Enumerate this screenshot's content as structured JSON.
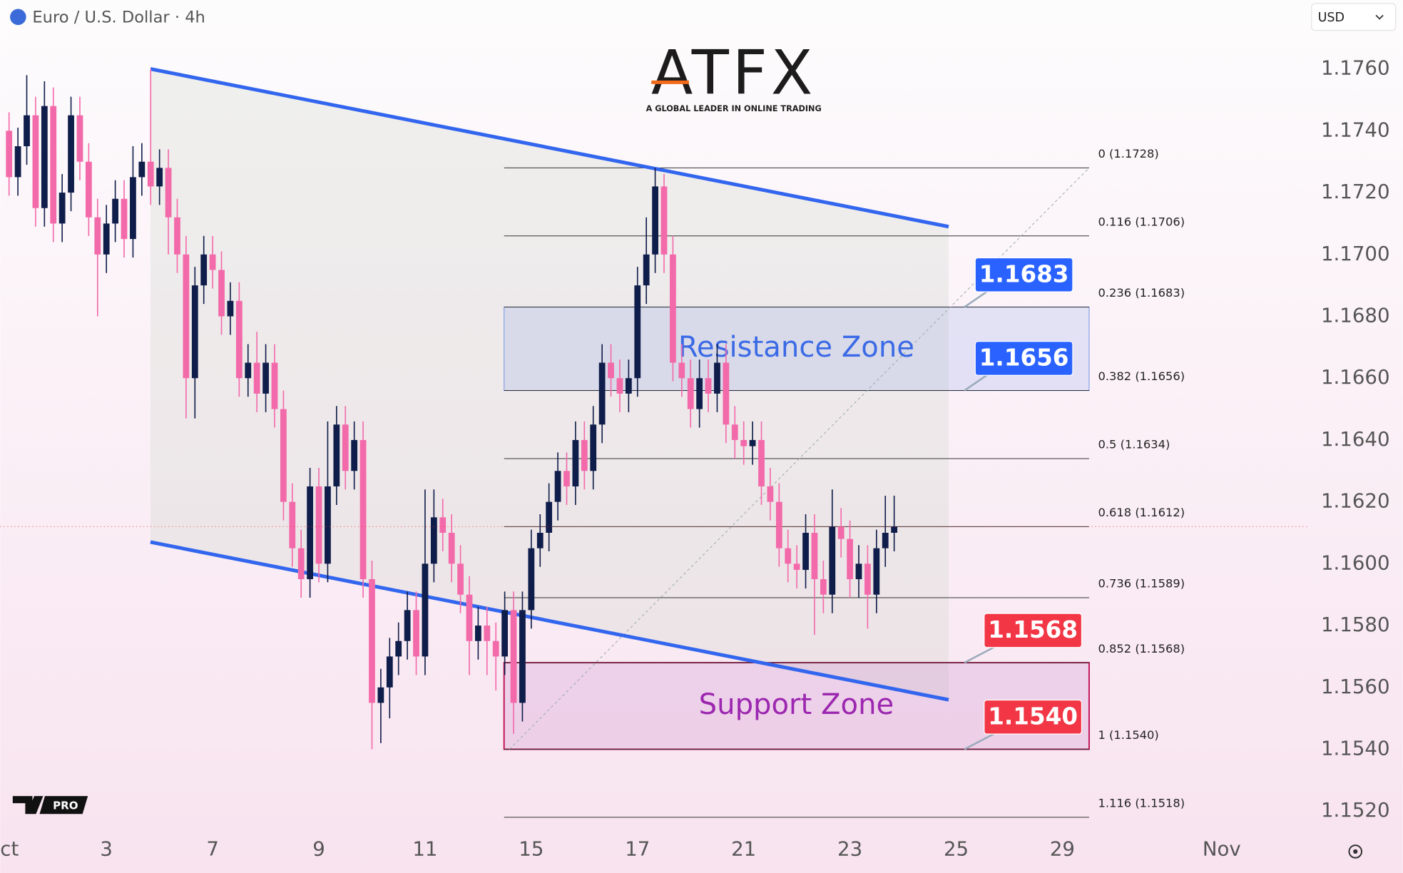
{
  "header": {
    "symbol": "Euro / U.S. Dollar · 4h",
    "currency": "USD"
  },
  "logo": {
    "name": "ATFX",
    "tagline": "A GLOBAL LEADER IN ONLINE TRADING"
  },
  "badge": "PRO",
  "chart_data": {
    "type": "candlestick",
    "x": [
      4,
      8,
      12,
      16,
      20,
      24,
      28,
      32,
      36,
      40,
      44,
      48,
      52,
      56,
      60,
      64,
      68,
      72,
      76,
      80,
      84,
      88,
      92,
      96,
      100,
      104,
      108,
      112,
      116,
      120,
      124,
      128,
      132,
      136,
      140,
      144,
      148,
      152,
      156,
      160,
      164,
      168,
      172,
      176,
      180,
      184,
      188,
      192,
      196,
      200,
      204,
      208,
      212,
      216,
      220,
      224,
      228,
      232,
      236,
      240,
      244,
      248,
      252,
      256,
      260,
      264,
      268,
      272,
      276,
      280,
      284,
      288,
      292,
      296,
      300,
      304,
      308,
      312,
      316,
      320,
      324,
      328,
      332,
      336,
      340,
      344,
      348,
      352,
      356,
      360,
      364,
      368,
      372,
      376,
      380,
      384,
      388,
      392,
      396,
      400,
      404
    ],
    "open": [
      1.174,
      1.1725,
      1.1735,
      1.1745,
      1.1715,
      1.1748,
      1.171,
      1.172,
      1.1745,
      1.173,
      1.1712,
      1.17,
      1.171,
      1.1718,
      1.1705,
      1.1725,
      1.173,
      1.1722,
      1.1728,
      1.1712,
      1.17,
      1.166,
      1.169,
      1.17,
      1.1695,
      1.168,
      1.1685,
      1.166,
      1.1665,
      1.1655,
      1.1665,
      1.165,
      1.162,
      1.1605,
      1.1595,
      1.1625,
      1.16,
      1.1625,
      1.1645,
      1.163,
      1.164,
      1.1595,
      1.1555,
      1.156,
      1.157,
      1.1575,
      1.1585,
      1.157,
      1.16,
      1.1615,
      1.161,
      1.16,
      1.159,
      1.1575,
      1.158,
      1.1575,
      1.157,
      1.1585,
      1.1555,
      1.1585,
      1.1605,
      1.161,
      1.162,
      1.163,
      1.1625,
      1.164,
      1.163,
      1.1645,
      1.1665,
      1.166,
      1.1655,
      1.166,
      1.169,
      1.17,
      1.1722,
      1.17,
      1.1665,
      1.166,
      1.165,
      1.166,
      1.1655,
      1.1665,
      1.1645,
      1.164,
      1.1638,
      1.164,
      1.1625,
      1.162,
      1.1605,
      1.16,
      1.1598,
      1.161,
      1.1595,
      1.159,
      1.1612,
      1.1608,
      1.1595,
      1.16,
      1.159,
      1.1605,
      1.161
    ],
    "high": [
      1.1746,
      1.1741,
      1.1758,
      1.1751,
      1.1756,
      1.1754,
      1.1726,
      1.1751,
      1.1751,
      1.1736,
      1.1718,
      1.1716,
      1.1724,
      1.1724,
      1.1735,
      1.1736,
      1.176,
      1.1734,
      1.1734,
      1.1718,
      1.1706,
      1.1696,
      1.1706,
      1.1706,
      1.1701,
      1.1691,
      1.1691,
      1.1671,
      1.1675,
      1.1671,
      1.1671,
      1.1656,
      1.1626,
      1.1611,
      1.1631,
      1.1631,
      1.1646,
      1.1651,
      1.1651,
      1.1646,
      1.1646,
      1.1601,
      1.1566,
      1.1576,
      1.1581,
      1.1591,
      1.1591,
      1.1624,
      1.1624,
      1.1621,
      1.1616,
      1.1606,
      1.1596,
      1.1586,
      1.1586,
      1.1581,
      1.1591,
      1.1591,
      1.1591,
      1.1611,
      1.1616,
      1.1626,
      1.1636,
      1.1636,
      1.1646,
      1.1646,
      1.1651,
      1.1671,
      1.1671,
      1.1666,
      1.1666,
      1.1696,
      1.1712,
      1.1728,
      1.1726,
      1.1706,
      1.1671,
      1.1666,
      1.1666,
      1.1666,
      1.1671,
      1.1671,
      1.1651,
      1.1646,
      1.1646,
      1.1646,
      1.1631,
      1.1626,
      1.1611,
      1.1606,
      1.1616,
      1.1616,
      1.1601,
      1.1624,
      1.1618,
      1.1614,
      1.1606,
      1.1606,
      1.1611,
      1.1622,
      1.1622
    ],
    "low": [
      1.1719,
      1.1719,
      1.1729,
      1.1709,
      1.1709,
      1.1704,
      1.1704,
      1.1714,
      1.1724,
      1.1706,
      1.168,
      1.1694,
      1.1704,
      1.1699,
      1.1699,
      1.1719,
      1.1716,
      1.1716,
      1.17,
      1.1694,
      1.1647,
      1.1647,
      1.1684,
      1.1689,
      1.1674,
      1.1674,
      1.1654,
      1.1654,
      1.1649,
      1.1649,
      1.1644,
      1.1614,
      1.1599,
      1.1589,
      1.1589,
      1.1594,
      1.1594,
      1.1619,
      1.1624,
      1.1624,
      1.1589,
      1.154,
      1.1542,
      1.155,
      1.1564,
      1.1569,
      1.1564,
      1.1564,
      1.1594,
      1.1604,
      1.1594,
      1.1584,
      1.1564,
      1.1569,
      1.1564,
      1.1559,
      1.1564,
      1.1545,
      1.1549,
      1.1579,
      1.1599,
      1.1604,
      1.1614,
      1.1619,
      1.1619,
      1.1624,
      1.1624,
      1.1639,
      1.1654,
      1.1649,
      1.1649,
      1.1654,
      1.1684,
      1.1694,
      1.1694,
      1.1659,
      1.1654,
      1.1644,
      1.1644,
      1.1649,
      1.1649,
      1.1639,
      1.1634,
      1.1632,
      1.1632,
      1.1619,
      1.1614,
      1.1599,
      1.1594,
      1.1592,
      1.1592,
      1.1577,
      1.1584,
      1.1584,
      1.1602,
      1.1589,
      1.1589,
      1.1579,
      1.1584,
      1.1599,
      1.1604
    ],
    "close": [
      1.1725,
      1.1735,
      1.1745,
      1.1715,
      1.1748,
      1.171,
      1.172,
      1.1745,
      1.173,
      1.1712,
      1.17,
      1.171,
      1.1718,
      1.1705,
      1.1725,
      1.173,
      1.1722,
      1.1728,
      1.1712,
      1.17,
      1.166,
      1.169,
      1.17,
      1.1695,
      1.168,
      1.1685,
      1.166,
      1.1665,
      1.1655,
      1.1665,
      1.165,
      1.162,
      1.1605,
      1.1595,
      1.1625,
      1.16,
      1.1625,
      1.1645,
      1.163,
      1.164,
      1.1595,
      1.1555,
      1.156,
      1.157,
      1.1575,
      1.1585,
      1.157,
      1.16,
      1.1615,
      1.161,
      1.16,
      1.159,
      1.1575,
      1.158,
      1.1575,
      1.157,
      1.1585,
      1.1555,
      1.1585,
      1.1605,
      1.161,
      1.162,
      1.163,
      1.1625,
      1.164,
      1.163,
      1.1645,
      1.1665,
      1.166,
      1.1655,
      1.166,
      1.169,
      1.17,
      1.1722,
      1.17,
      1.1665,
      1.166,
      1.165,
      1.166,
      1.1655,
      1.1665,
      1.1645,
      1.164,
      1.1638,
      1.164,
      1.1625,
      1.162,
      1.1605,
      1.16,
      1.1598,
      1.161,
      1.1595,
      1.159,
      1.1612,
      1.1608,
      1.1595,
      1.16,
      1.159,
      1.1605,
      1.161,
      1.1612
    ],
    "up_color": "#0f1d4a",
    "down_color": "#f36aaa",
    "xlim": [
      0,
      591
    ],
    "xticks": [
      {
        "value": 0,
        "label": "ct"
      },
      {
        "value": 48,
        "label": "3"
      },
      {
        "value": 96,
        "label": "7"
      },
      {
        "value": 144,
        "label": "9"
      },
      {
        "value": 192,
        "label": "11"
      },
      {
        "value": 240,
        "label": "15"
      },
      {
        "value": 288,
        "label": "17"
      },
      {
        "value": 336,
        "label": "21"
      },
      {
        "value": 384,
        "label": "23"
      },
      {
        "value": 432,
        "label": "25"
      },
      {
        "value": 480,
        "label": "29"
      },
      {
        "value": 552,
        "label": "Nov"
      }
    ],
    "ylim": [
      1.1513,
      1.1782
    ],
    "yticks": [
      {
        "value": 1.152,
        "label": "1.1520"
      },
      {
        "value": 1.154,
        "label": "1.1540"
      },
      {
        "value": 1.156,
        "label": "1.1560"
      },
      {
        "value": 1.158,
        "label": "1.1580"
      },
      {
        "value": 1.16,
        "label": "1.1600"
      },
      {
        "value": 1.162,
        "label": "1.1620"
      },
      {
        "value": 1.164,
        "label": "1.1640"
      },
      {
        "value": 1.166,
        "label": "1.1660"
      },
      {
        "value": 1.168,
        "label": "1.1680"
      },
      {
        "value": 1.17,
        "label": "1.1700"
      },
      {
        "value": 1.172,
        "label": "1.1720"
      },
      {
        "value": 1.174,
        "label": "1.1740"
      },
      {
        "value": 1.176,
        "label": "1.1760"
      }
    ],
    "grid": false,
    "channel": {
      "color": "#3366ee",
      "upper": {
        "x": [
          67.9,
          428.6
        ],
        "y": [
          1.176,
          1.1709
        ]
      },
      "lower": {
        "x": [
          67.9,
          428.6
        ],
        "y": [
          1.1607,
          1.1556
        ]
      }
    },
    "fibonacci": {
      "x": [
        227.7,
        492.1
      ],
      "levels": [
        {
          "label": "0 (1.1728)",
          "value": 1.1728
        },
        {
          "label": "0.116 (1.1706)",
          "value": 1.1706
        },
        {
          "label": "0.236 (1.1683)",
          "value": 1.1683
        },
        {
          "label": "0.382 (1.1656)",
          "value": 1.1656
        },
        {
          "label": "0.5 (1.1634)",
          "value": 1.1634
        },
        {
          "label": "0.618 (1.1612)",
          "value": 1.1612
        },
        {
          "label": "0.736 (1.1589)",
          "value": 1.1589
        },
        {
          "label": "0.852 (1.1568)",
          "value": 1.1568
        },
        {
          "label": "1 (1.1540)",
          "value": 1.154
        },
        {
          "label": "1.116 (1.1518)",
          "value": 1.1518
        }
      ]
    },
    "zones": [
      {
        "name": "Resistance Zone",
        "high": 1.1683,
        "low": 1.1656,
        "color": "#3b6ae6"
      },
      {
        "name": "Support Zone",
        "high": 1.1568,
        "low": 1.154,
        "color": "#9c27b0"
      }
    ],
    "price_tags": [
      {
        "value": 1.1683,
        "label": "1.1683",
        "color": "#2962ff"
      },
      {
        "value": 1.1656,
        "label": "1.1656",
        "color": "#2962ff"
      },
      {
        "value": 1.1568,
        "label": "1.1568",
        "color": "#f23645"
      },
      {
        "value": 1.154,
        "label": "1.1540",
        "color": "#f23645"
      }
    ]
  }
}
